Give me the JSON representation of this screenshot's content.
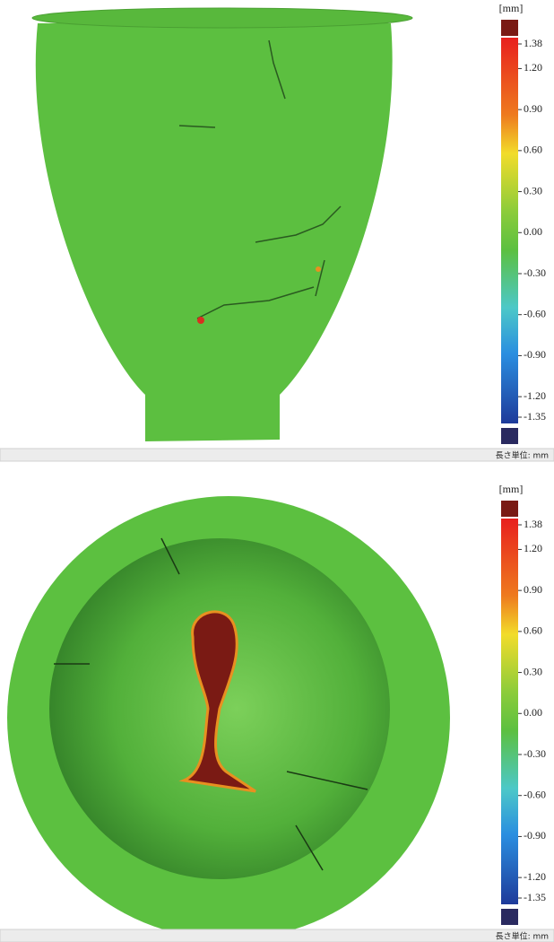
{
  "panels": [
    {
      "unit_label": "[mm]",
      "scale_ticks": [
        {
          "value": 1.38,
          "label": "1.38"
        },
        {
          "value": 1.2,
          "label": "1.20"
        },
        {
          "value": 0.9,
          "label": "0.90"
        },
        {
          "value": 0.6,
          "label": "0.60"
        },
        {
          "value": 0.3,
          "label": "0.30"
        },
        {
          "value": 0,
          "label": "0.00"
        },
        {
          "value": -0.3,
          "label": "-0.30"
        },
        {
          "value": -0.6,
          "label": "-0.60"
        },
        {
          "value": -0.9,
          "label": "-0.90"
        },
        {
          "value": -1.2,
          "label": "-1.20"
        },
        {
          "value": -1.35,
          "label": "-1.35"
        }
      ],
      "footer": "長さ単位: mm"
    },
    {
      "unit_label": "[mm]",
      "scale_ticks": [
        {
          "value": 1.38,
          "label": "1.38"
        },
        {
          "value": 1.2,
          "label": "1.20"
        },
        {
          "value": 0.9,
          "label": "0.90"
        },
        {
          "value": 0.6,
          "label": "0.60"
        },
        {
          "value": 0.3,
          "label": "0.30"
        },
        {
          "value": 0,
          "label": "0.00"
        },
        {
          "value": -0.3,
          "label": "-0.30"
        },
        {
          "value": -0.6,
          "label": "-0.60"
        },
        {
          "value": -0.9,
          "label": "-0.90"
        },
        {
          "value": -1.2,
          "label": "-1.20"
        },
        {
          "value": -1.35,
          "label": "-1.35"
        }
      ],
      "footer": "長さ単位: mm"
    }
  ]
}
